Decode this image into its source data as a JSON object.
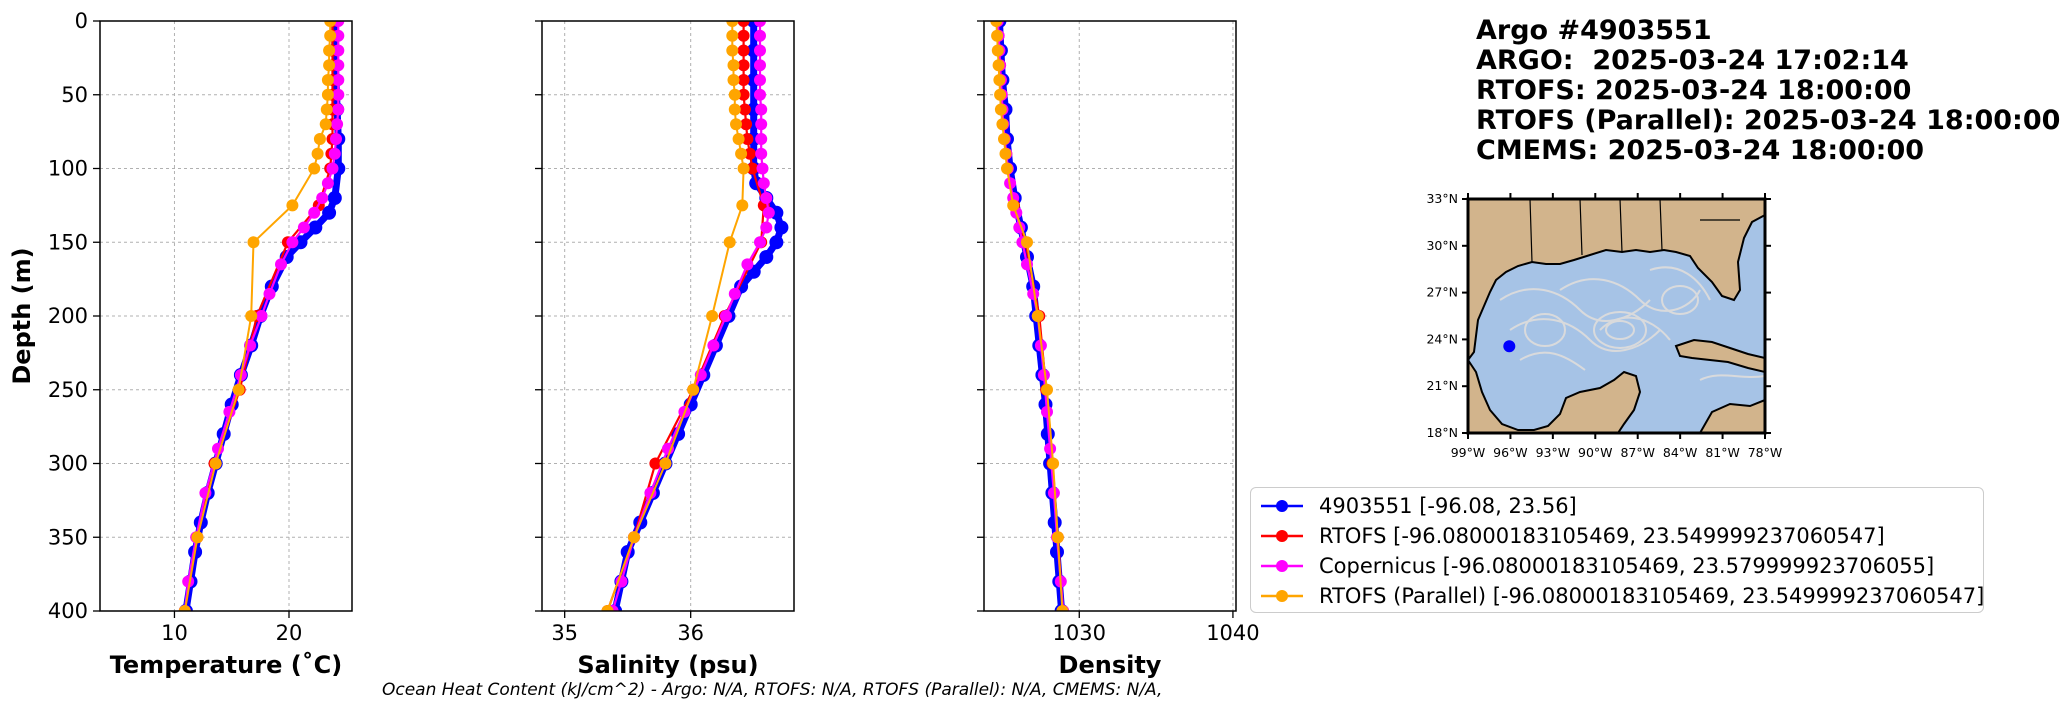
{
  "header": {
    "lines": [
      "Argo #4903551",
      "ARGO:  2025-03-24 17:02:14",
      "RTOFS: 2025-03-24 18:00:00",
      "RTOFS (Parallel): 2025-03-24 18:00:00",
      "CMEMS: 2025-03-24 18:00:00"
    ]
  },
  "footer": "Ocean Heat Content (kJ/cm^2) - Argo: N/A,  RTOFS: N/A,  RTOFS (Parallel): N/A,  CMEMS: N/A,",
  "colors": {
    "argo": "#0000ff",
    "rtofs": "#ff0000",
    "copernicus": "#ff00ff",
    "rtofs_parallel": "#ffa500",
    "land": "#d2b48c",
    "ocean": "#a6c3e6",
    "stream": "#dcdcdc"
  },
  "legend": [
    {
      "label": "4903551 [-96.08, 23.56]",
      "color": "#0000ff"
    },
    {
      "label": "RTOFS [-96.08000183105469, 23.549999237060547]",
      "color": "#ff0000"
    },
    {
      "label": "Copernicus [-96.08000183105469, 23.579999923706055]",
      "color": "#ff00ff"
    },
    {
      "label": "RTOFS (Parallel) [-96.08000183105469, 23.549999237060547]",
      "color": "#ffa500"
    }
  ],
  "chart_data": [
    {
      "type": "line",
      "xlabel": "Temperature (˚C)",
      "ylabel": "Depth (m)",
      "xlim": [
        3.5,
        25.5
      ],
      "ylim": [
        400,
        0
      ],
      "xticks": [
        10,
        20
      ],
      "yticks": [
        0,
        50,
        100,
        150,
        200,
        250,
        300,
        350,
        400
      ],
      "grid": true,
      "series": [
        {
          "name": "4903551 [-96.08, 23.56]",
          "depth": [
            0,
            20,
            40,
            60,
            80,
            100,
            120,
            130,
            140,
            150,
            160,
            180,
            200,
            220,
            240,
            260,
            280,
            300,
            320,
            340,
            360,
            380,
            400
          ],
          "values": [
            24.0,
            24.0,
            24.1,
            24.2,
            24.3,
            24.3,
            24.0,
            23.5,
            22.3,
            21.0,
            19.8,
            18.5,
            17.5,
            16.7,
            15.8,
            15.0,
            14.3,
            13.6,
            12.9,
            12.3,
            11.8,
            11.4,
            11.0
          ]
        },
        {
          "name": "RTOFS [-96.08000183105469, 23.549999237060547]",
          "depth": [
            0,
            10,
            20,
            30,
            40,
            50,
            60,
            70,
            80,
            90,
            100,
            125,
            150,
            200,
            250,
            300,
            350,
            400
          ],
          "values": [
            23.8,
            23.8,
            23.8,
            23.8,
            23.8,
            23.8,
            23.8,
            23.8,
            23.8,
            23.7,
            23.6,
            22.6,
            19.9,
            17.2,
            15.7,
            13.5,
            12.0,
            10.9
          ]
        },
        {
          "name": "Copernicus [-96.08000183105469, 23.579999923706055]",
          "depth": [
            0,
            10,
            20,
            30,
            40,
            50,
            60,
            70,
            80,
            90,
            100,
            110,
            120,
            130,
            140,
            150,
            165,
            185,
            200,
            220,
            240,
            265,
            290,
            320,
            350,
            380,
            400
          ],
          "values": [
            24.3,
            24.3,
            24.3,
            24.3,
            24.3,
            24.3,
            24.3,
            24.2,
            24.1,
            24.0,
            23.8,
            23.4,
            22.9,
            22.2,
            21.3,
            20.3,
            19.3,
            18.3,
            17.6,
            16.6,
            15.8,
            14.8,
            13.8,
            12.7,
            11.9,
            11.2,
            10.9
          ]
        },
        {
          "name": "RTOFS (Parallel) [-96.08000183105469, 23.549999237060547]",
          "depth": [
            0,
            10,
            20,
            30,
            40,
            50,
            60,
            70,
            80,
            90,
            100,
            125,
            150,
            200,
            250,
            300,
            350,
            400
          ],
          "values": [
            23.6,
            23.6,
            23.5,
            23.5,
            23.4,
            23.4,
            23.3,
            23.2,
            22.7,
            22.5,
            22.2,
            20.3,
            16.9,
            16.7,
            15.6,
            13.6,
            12.0,
            10.9
          ]
        }
      ]
    },
    {
      "type": "line",
      "xlabel": "Salinity (psu)",
      "ylabel": "",
      "xlim": [
        34.82,
        36.82
      ],
      "ylim": [
        400,
        0
      ],
      "xticks": [
        35,
        36
      ],
      "yticks": [
        0,
        50,
        100,
        150,
        200,
        250,
        300,
        350,
        400
      ],
      "grid": true,
      "series": [
        {
          "name": "4903551 [-96.08, 23.56]",
          "depth": [
            0,
            20,
            40,
            60,
            80,
            100,
            110,
            120,
            130,
            140,
            150,
            160,
            170,
            180,
            200,
            220,
            240,
            260,
            280,
            300,
            320,
            340,
            360,
            380,
            400
          ],
          "values": [
            36.5,
            36.5,
            36.5,
            36.5,
            36.5,
            36.5,
            36.52,
            36.6,
            36.68,
            36.72,
            36.68,
            36.6,
            36.5,
            36.4,
            36.3,
            36.2,
            36.1,
            36.0,
            35.9,
            35.8,
            35.7,
            35.6,
            35.5,
            35.45,
            35.4
          ]
        },
        {
          "name": "RTOFS [-96.08000183105469, 23.549999237060547]",
          "depth": [
            0,
            10,
            20,
            30,
            40,
            50,
            60,
            70,
            80,
            90,
            100,
            125,
            150,
            200,
            250,
            300,
            350,
            400
          ],
          "values": [
            36.42,
            36.42,
            36.42,
            36.42,
            36.42,
            36.42,
            36.43,
            36.44,
            36.45,
            36.47,
            36.49,
            36.58,
            36.56,
            36.27,
            36.02,
            35.72,
            35.55,
            35.34
          ]
        },
        {
          "name": "Copernicus [-96.08000183105469, 23.579999923706055]",
          "depth": [
            0,
            10,
            20,
            30,
            40,
            50,
            60,
            70,
            80,
            90,
            100,
            110,
            120,
            130,
            140,
            150,
            165,
            185,
            200,
            220,
            240,
            265,
            290,
            320,
            350,
            380,
            400
          ],
          "values": [
            36.55,
            36.55,
            36.55,
            36.55,
            36.55,
            36.55,
            36.56,
            36.56,
            36.56,
            36.56,
            36.57,
            36.58,
            36.6,
            36.62,
            36.6,
            36.55,
            36.45,
            36.35,
            36.28,
            36.18,
            36.08,
            35.95,
            35.82,
            35.68,
            35.55,
            35.45,
            35.38
          ]
        },
        {
          "name": "RTOFS (Parallel) [-96.08000183105469, 23.549999237060547]",
          "depth": [
            0,
            10,
            20,
            30,
            40,
            50,
            60,
            70,
            80,
            90,
            100,
            125,
            150,
            200,
            250,
            300,
            350,
            400
          ],
          "values": [
            36.33,
            36.33,
            36.33,
            36.34,
            36.34,
            36.35,
            36.35,
            36.36,
            36.38,
            36.4,
            36.42,
            36.41,
            36.31,
            36.17,
            36.02,
            35.8,
            35.55,
            35.34
          ]
        }
      ]
    },
    {
      "type": "line",
      "xlabel": "Density",
      "ylabel": "",
      "xlim": [
        1023.8,
        1040.2
      ],
      "ylim": [
        400,
        0
      ],
      "xticks": [
        1030,
        1040
      ],
      "yticks": [
        0,
        50,
        100,
        150,
        200,
        250,
        300,
        350,
        400
      ],
      "grid": true,
      "series": [
        {
          "name": "4903551 [-96.08, 23.56]",
          "depth": [
            0,
            20,
            40,
            60,
            80,
            100,
            120,
            140,
            160,
            180,
            200,
            220,
            240,
            260,
            280,
            300,
            320,
            340,
            360,
            380,
            400
          ],
          "values": [
            1024.8,
            1024.9,
            1025.0,
            1025.2,
            1025.3,
            1025.5,
            1025.8,
            1026.2,
            1026.6,
            1027.0,
            1027.2,
            1027.4,
            1027.6,
            1027.8,
            1027.95,
            1028.1,
            1028.25,
            1028.4,
            1028.55,
            1028.7,
            1028.85
          ]
        },
        {
          "name": "RTOFS [-96.08000183105469, 23.549999237060547]",
          "depth": [
            0,
            10,
            20,
            30,
            40,
            50,
            60,
            70,
            80,
            90,
            100,
            125,
            150,
            200,
            250,
            300,
            350,
            400
          ],
          "values": [
            1024.7,
            1024.75,
            1024.8,
            1024.85,
            1024.9,
            1024.95,
            1025.0,
            1025.05,
            1025.15,
            1025.25,
            1025.35,
            1025.75,
            1026.5,
            1027.4,
            1027.85,
            1028.25,
            1028.6,
            1028.95
          ]
        },
        {
          "name": "Copernicus [-96.08000183105469, 23.579999923706055]",
          "depth": [
            0,
            10,
            20,
            30,
            40,
            50,
            60,
            70,
            80,
            90,
            100,
            110,
            120,
            130,
            140,
            150,
            165,
            185,
            200,
            220,
            240,
            265,
            290,
            320,
            350,
            380,
            400
          ],
          "values": [
            1024.7,
            1024.75,
            1024.8,
            1024.85,
            1024.9,
            1024.95,
            1025.0,
            1025.05,
            1025.15,
            1025.25,
            1025.35,
            1025.5,
            1025.7,
            1025.9,
            1026.1,
            1026.3,
            1026.6,
            1027.0,
            1027.3,
            1027.5,
            1027.7,
            1027.9,
            1028.1,
            1028.35,
            1028.55,
            1028.8,
            1028.95
          ]
        },
        {
          "name": "RTOFS (Parallel) [-96.08000183105469, 23.549999237060547]",
          "depth": [
            0,
            10,
            20,
            30,
            40,
            50,
            60,
            70,
            80,
            90,
            100,
            125,
            150,
            200,
            250,
            300,
            350,
            400
          ],
          "values": [
            1024.6,
            1024.65,
            1024.7,
            1024.75,
            1024.8,
            1024.85,
            1024.9,
            1025.0,
            1025.1,
            1025.2,
            1025.3,
            1025.7,
            1026.6,
            1027.3,
            1027.9,
            1028.3,
            1028.6,
            1028.9
          ]
        }
      ]
    }
  ],
  "map": {
    "type": "map",
    "lon_ticks": [
      "99°W",
      "96°W",
      "93°W",
      "90°W",
      "87°W",
      "84°W",
      "81°W",
      "78°W"
    ],
    "lat_ticks": [
      "33°N",
      "30°N",
      "27°N",
      "24°N",
      "21°N",
      "18°N"
    ],
    "lon_range": [
      -99,
      -78
    ],
    "lat_range": [
      18,
      33
    ],
    "marker": {
      "lon": -96.08,
      "lat": 23.56
    }
  }
}
